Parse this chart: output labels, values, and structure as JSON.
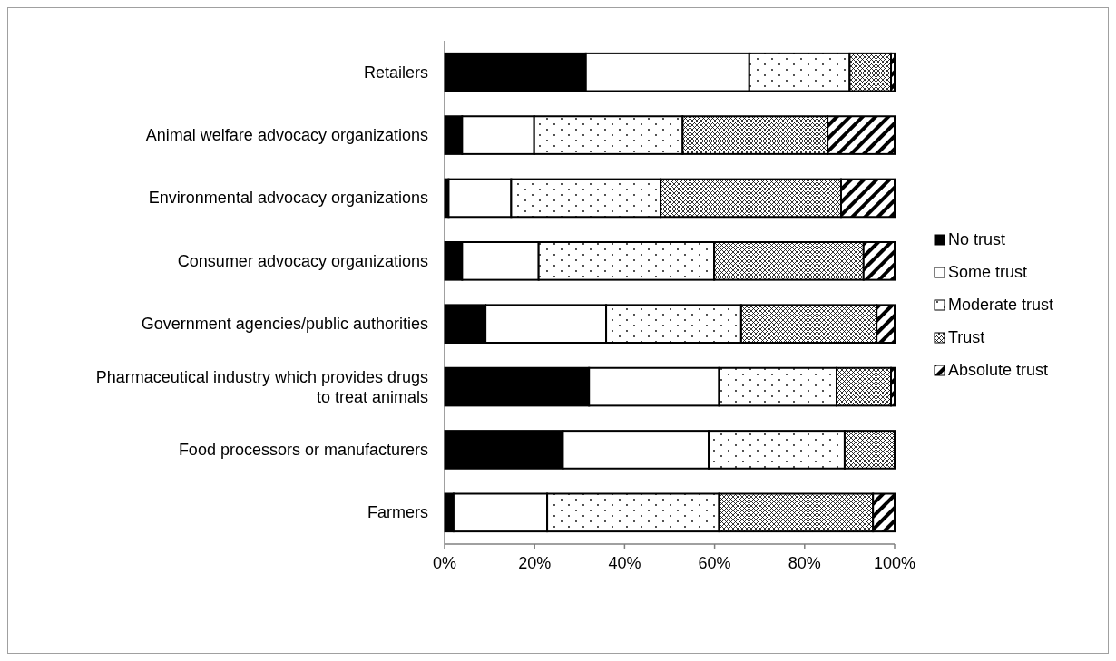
{
  "chart_data": {
    "type": "bar",
    "orientation": "horizontal",
    "stacked": true,
    "legend": "right",
    "grid": false,
    "categories": [
      "Retailers",
      "Animal welfare advocacy organizations",
      "Environmental advocacy organizations",
      "Consumer advocacy organizations",
      "Government agencies/public authorities",
      "Pharmaceutical industry which provides drugs to treat animals",
      "Food processors or manufacturers",
      "Farmers"
    ],
    "xlim": [
      0,
      100
    ],
    "xticks": [
      {
        "value": 0,
        "label": "0%"
      },
      {
        "value": 20,
        "label": "20%"
      },
      {
        "value": 40,
        "label": "40%"
      },
      {
        "value": 60,
        "label": "60%"
      },
      {
        "value": 80,
        "label": "80%"
      },
      {
        "value": 100,
        "label": "100%"
      }
    ],
    "series": [
      {
        "name": "No trust",
        "color": "#000000",
        "values": [
          31.4,
          3.9,
          0.9,
          3.9,
          9.1,
          32.1,
          26.3,
          2.0
        ]
      },
      {
        "name": "Some trust",
        "color": "#ffffff",
        "values": [
          36.3,
          16.0,
          13.9,
          17.0,
          26.8,
          28.9,
          32.4,
          20.8
        ]
      },
      {
        "name": "Moderate trust",
        "color": "#000000",
        "values": [
          22.3,
          33.0,
          33.2,
          39.0,
          30.0,
          26.1,
          30.2,
          38.2
        ]
      },
      {
        "name": "Trust",
        "color": "#000000",
        "values": [
          9.2,
          32.2,
          40.1,
          33.2,
          30.1,
          12.1,
          11.1,
          34.2
        ]
      },
      {
        "name": "Absolute trust",
        "color": "#000000",
        "values": [
          0.8,
          14.9,
          11.9,
          6.9,
          4.0,
          0.8,
          0,
          4.8
        ]
      }
    ]
  }
}
